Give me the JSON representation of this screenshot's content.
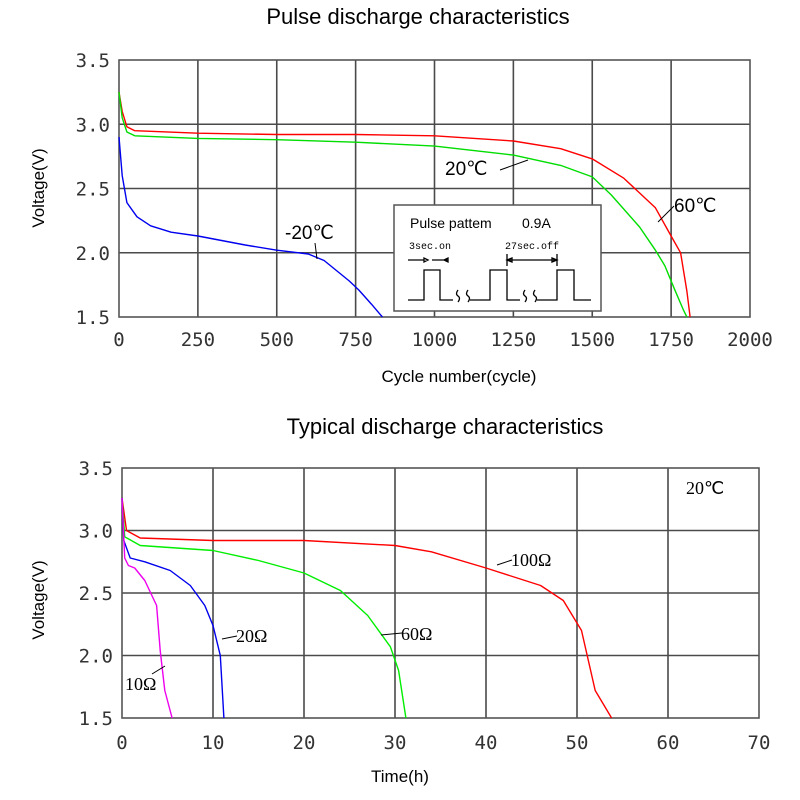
{
  "chart_data": [
    {
      "type": "line",
      "title": "Pulse discharge characteristics",
      "xlabel": "Cycle number(cycle)",
      "ylabel": "Voltage(V)",
      "xlim": [
        0,
        2000
      ],
      "ylim": [
        1.5,
        3.5
      ],
      "xticks": [
        0,
        250,
        500,
        750,
        1000,
        1250,
        1500,
        1750,
        2000
      ],
      "xtick_labels": [
        "0",
        "250",
        "500",
        "750",
        "1000",
        "1250",
        "1500",
        "1750",
        "2000"
      ],
      "yticks": [
        1.5,
        2.0,
        2.5,
        3.0,
        3.5
      ],
      "ytick_labels": [
        "1.5",
        "2.0",
        "2.5",
        "3.0",
        "3.5"
      ],
      "grid": true,
      "series": [
        {
          "name": "60℃",
          "color": "#ff0000",
          "x": [
            0,
            10,
            25,
            50,
            250,
            500,
            750,
            1000,
            1250,
            1400,
            1500,
            1600,
            1700,
            1750,
            1780,
            1800,
            1810
          ],
          "y": [
            3.25,
            3.1,
            2.98,
            2.95,
            2.93,
            2.92,
            2.92,
            2.91,
            2.87,
            2.81,
            2.73,
            2.58,
            2.35,
            2.13,
            2.0,
            1.7,
            1.5
          ]
        },
        {
          "name": "20℃",
          "color": "#00dd00",
          "x": [
            0,
            10,
            25,
            50,
            250,
            500,
            750,
            1000,
            1250,
            1400,
            1500,
            1560,
            1650,
            1700,
            1730,
            1760,
            1790,
            1800
          ],
          "y": [
            3.25,
            3.05,
            2.94,
            2.91,
            2.89,
            2.88,
            2.86,
            2.83,
            2.76,
            2.68,
            2.59,
            2.45,
            2.2,
            2.02,
            1.9,
            1.72,
            1.55,
            1.5
          ]
        },
        {
          "name": "-20℃",
          "color": "#0000ee",
          "x": [
            0,
            10,
            25,
            57,
            100,
            165,
            250,
            400,
            500,
            600,
            650,
            730,
            760,
            800,
            835
          ],
          "y": [
            2.9,
            2.6,
            2.39,
            2.28,
            2.21,
            2.16,
            2.13,
            2.06,
            2.02,
            1.99,
            1.94,
            1.78,
            1.71,
            1.6,
            1.5
          ]
        }
      ],
      "annotations": {
        "label_20": "20℃",
        "label_60": "60℃",
        "label_m20": "-20℃"
      },
      "inset": {
        "title": "Pulse pattem",
        "current": "0.9A",
        "on_label": "3sec.on",
        "off_label": "27sec.off"
      }
    },
    {
      "type": "line",
      "title": "Typical discharge characteristics",
      "xlabel": "Time(h)",
      "ylabel": "Voltage(V)",
      "xlim": [
        0,
        70
      ],
      "ylim": [
        1.5,
        3.5
      ],
      "xticks": [
        0,
        10,
        20,
        30,
        40,
        50,
        60,
        70
      ],
      "xtick_labels": [
        "0",
        "10",
        "20",
        "30",
        "40",
        "50",
        "60",
        "70"
      ],
      "yticks": [
        1.5,
        2.0,
        2.5,
        3.0,
        3.5
      ],
      "ytick_labels": [
        "1.5",
        "2.0",
        "2.5",
        "3.0",
        "3.5"
      ],
      "grid": true,
      "condition_label": "20℃",
      "series": [
        {
          "name": "100Ω",
          "color": "#ff0000",
          "x": [
            0,
            0.5,
            2,
            10,
            20,
            30,
            34,
            40,
            46,
            48.5,
            50.5,
            52,
            53.8
          ],
          "y": [
            3.26,
            3.0,
            2.94,
            2.92,
            2.92,
            2.88,
            2.83,
            2.7,
            2.56,
            2.44,
            2.2,
            1.72,
            1.5
          ]
        },
        {
          "name": "60Ω",
          "color": "#00ee00",
          "x": [
            0,
            0.3,
            2,
            10,
            15,
            20,
            24,
            27,
            29.5,
            30.4,
            31.2
          ],
          "y": [
            3.26,
            2.95,
            2.88,
            2.84,
            2.76,
            2.66,
            2.52,
            2.32,
            2.07,
            1.88,
            1.5
          ]
        },
        {
          "name": "20Ω",
          "color": "#0000ee",
          "x": [
            0,
            0.2,
            0.9,
            2.5,
            5.3,
            7.5,
            9.1,
            10,
            10.8,
            11.2
          ],
          "y": [
            3.26,
            2.92,
            2.78,
            2.75,
            2.68,
            2.56,
            2.4,
            2.24,
            2.0,
            1.5
          ]
        },
        {
          "name": "10Ω",
          "color": "#ee00ee",
          "x": [
            0,
            0.3,
            0.7,
            1.4,
            2.5,
            3.8,
            4.2,
            4.7,
            5.5
          ],
          "y": [
            3.26,
            2.78,
            2.72,
            2.7,
            2.6,
            2.4,
            2.04,
            1.72,
            1.5
          ]
        }
      ],
      "annotations": {
        "label_100": "100Ω",
        "label_60": "60Ω",
        "label_20": "20Ω",
        "label_10": "10Ω"
      }
    }
  ]
}
